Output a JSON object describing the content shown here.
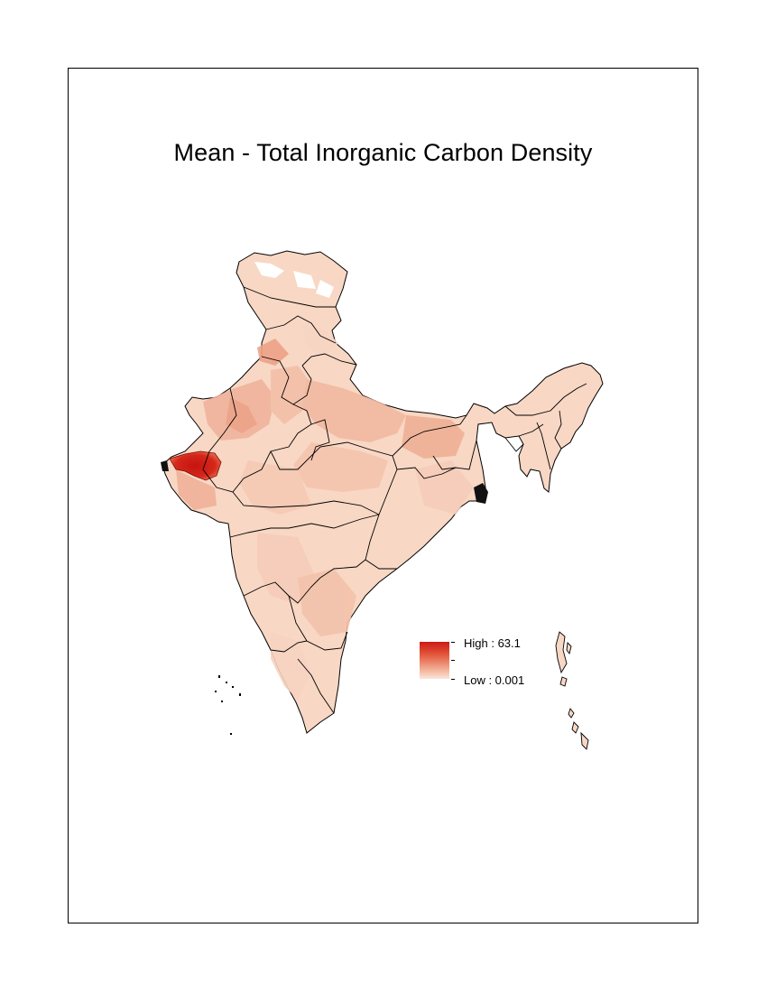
{
  "map": {
    "title": "Mean - Total Inorganic Carbon Density",
    "variable": "Total Inorganic Carbon Density (mean)",
    "region": "India",
    "colors": {
      "low": "#fbe6d9",
      "mid": "#e3583d",
      "high": "#cc1a14",
      "boundary": "#000000",
      "background": "#ffffff"
    },
    "legend": {
      "high_label": "High : 63.1",
      "low_label": "Low : 0.001",
      "high_value": 63.1,
      "low_value": 0.001
    }
  }
}
